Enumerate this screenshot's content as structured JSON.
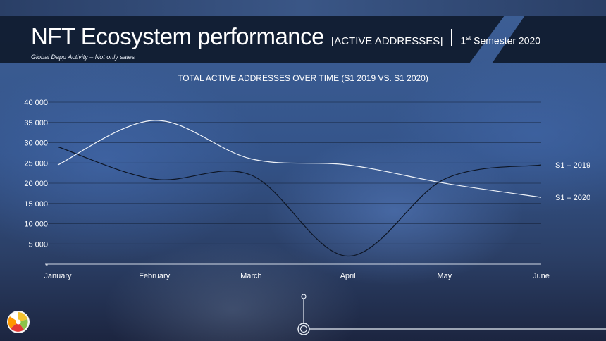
{
  "header": {
    "title": "NFT Ecosystem performance",
    "tag": "[ACTIVE ADDRESSES]",
    "semester_num": "1",
    "semester_sup": "st",
    "semester_text": " Semester 2020",
    "subtitle": "Global Dapp Activity – Not only sales"
  },
  "chart_data": {
    "type": "line",
    "title": "TOTAL ACTIVE ADDRESSES OVER TIME (S1 2019 VS. S1 2020)",
    "categories": [
      "January",
      "February",
      "March",
      "April",
      "May",
      "June"
    ],
    "y_ticks": [
      "-",
      "5 000",
      "10 000",
      "15 000",
      "20 000",
      "25 000",
      "30 000",
      "35 000",
      "40 000"
    ],
    "ylim": [
      0,
      40000
    ],
    "grid": true,
    "series": [
      {
        "name": "S1 – 2019",
        "values": [
          29000,
          21000,
          22000,
          2000,
          21000,
          24500
        ],
        "color": "#0d1524"
      },
      {
        "name": "S1 – 2020",
        "values": [
          24500,
          35500,
          26000,
          24500,
          20000,
          16500
        ],
        "color": "#eef2f8"
      }
    ]
  },
  "colors": {
    "header_band": "#0f1a2c",
    "accent_line": "#e8edf5"
  }
}
